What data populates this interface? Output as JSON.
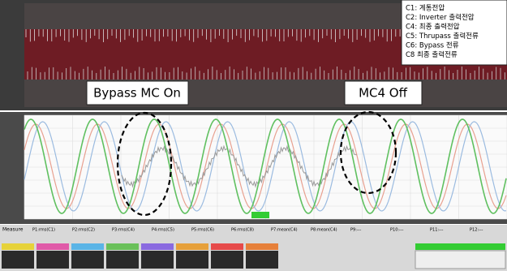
{
  "legend": {
    "items": [
      "C1: 계통전압",
      "C2: Inverter 출력전압",
      "C4: 최종 출력전압",
      "C5: Thrupass 출력전류",
      "C6: Bypass 전류",
      "C8 최종 출력전류"
    ]
  },
  "annotations": [
    "Bypass MC On",
    "MC4 Off"
  ],
  "measure": {
    "title": "Measure",
    "params": [
      "P1:rms(C1)",
      "P2:rms(C2)",
      "P3:rms(C4)",
      "P4:rms(C5)",
      "P5:rms(C6)",
      "P6:rms(C8)",
      "P7:mean(C4)",
      "P8:mean(C4)",
      "P9:---",
      "P10:---",
      "P11:---",
      "P12:---"
    ]
  }
}
